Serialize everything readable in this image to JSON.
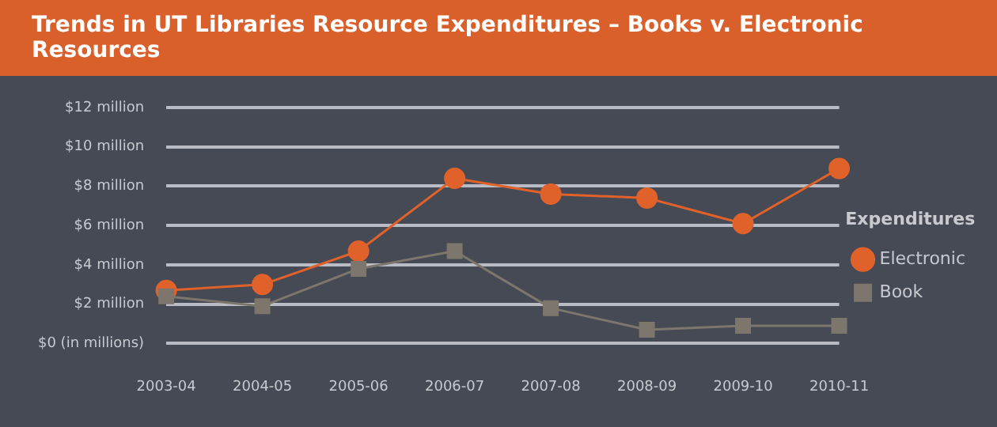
{
  "chart_data": {
    "type": "line",
    "title": "Trends in UT Libraries Resource Expenditures – Books v. Electronic Resources",
    "categories": [
      "2003-04",
      "2004-05",
      "2005-06",
      "2006-07",
      "2007-08",
      "2008-09",
      "2009-10",
      "2010-11"
    ],
    "series": [
      {
        "name": "Electronic",
        "color": "#e0622a",
        "marker": "circle",
        "values": [
          2.7,
          3.0,
          4.7,
          8.4,
          7.6,
          7.4,
          6.1,
          8.9
        ]
      },
      {
        "name": "Book",
        "color": "#7d766c",
        "marker": "square",
        "values": [
          2.4,
          1.9,
          3.8,
          4.7,
          1.8,
          0.7,
          0.9,
          0.9
        ]
      }
    ],
    "ylim": [
      0,
      12
    ],
    "yticks": [
      {
        "value": 0,
        "label": "$0 (in millions)"
      },
      {
        "value": 2,
        "label": "$2 million"
      },
      {
        "value": 4,
        "label": "$4 million"
      },
      {
        "value": 6,
        "label": "$6 million"
      },
      {
        "value": 8,
        "label": "$8 million"
      },
      {
        "value": 10,
        "label": "$10 million"
      },
      {
        "value": 12,
        "label": "$12 million"
      }
    ],
    "grid": "y",
    "legend": "right",
    "legend_title": "Expenditures",
    "line_style": "solid"
  }
}
